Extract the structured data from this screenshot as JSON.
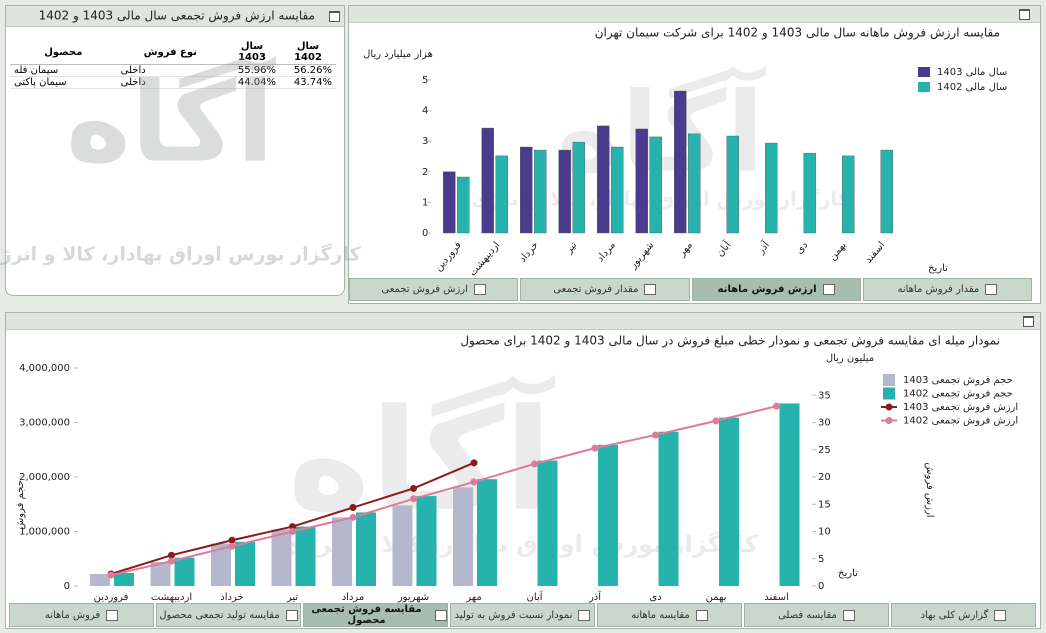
{
  "table_panel": {
    "title": "مقایسه ارزش فروش تجمعی سال مالی 1403 و 1402",
    "columns": [
      "محصول",
      "نوع فروش",
      "سال 1403",
      "سال 1402"
    ],
    "rows": [
      [
        "سیمان فله",
        "داخلی",
        "55.96%",
        "56.26%"
      ],
      [
        "سیمان پاکتی",
        "داخلی",
        "44.04%",
        "43.74%"
      ]
    ]
  },
  "watermark": {
    "logo": "آگاه",
    "text": "کارگزار بورس اوراق بهادار، کالا و انرژی"
  },
  "chart_data": [
    {
      "type": "bar",
      "title": "مقایسه ارزش فروش ماهانه سال مالی 1403 و 1402 برای شرکت سیمان تهران",
      "y_label": "هزار میلیارد ریال",
      "x_label": "تاریخ",
      "categories": [
        "فروردین",
        "اردیبهشت",
        "خرداد",
        "تیر",
        "مرداد",
        "شهریور",
        "مهر",
        "آبان",
        "آذر",
        "دی",
        "بهمن",
        "اسفند"
      ],
      "series": [
        {
          "name": "سال مالی 1403",
          "color": "#4a3b8c",
          "values": [
            2.0,
            3.43,
            2.81,
            2.71,
            3.5,
            3.4,
            4.64,
            null,
            null,
            null,
            null,
            null
          ]
        },
        {
          "name": "سال مالی 1402",
          "color": "#26b3ae",
          "values": [
            1.83,
            2.52,
            2.71,
            2.97,
            2.81,
            3.14,
            3.24,
            3.17,
            2.94,
            2.61,
            2.52,
            2.71
          ]
        }
      ],
      "ylim": [
        0,
        5
      ],
      "yticks": [
        0,
        1,
        2,
        3,
        4,
        5
      ],
      "grid": false,
      "legend": "upper-right"
    },
    {
      "type": "combo",
      "title": "نمودار میله ای مقایسه فروش تجمعی و نمودار خطی مبلغ فروش در سال مالی 1403 و 1402 برای محصول",
      "y_label": "حجم فروش",
      "y2_label": "ارزش فروش",
      "y2_unit": "میلیون ریال",
      "x_label": "تاریخ",
      "categories": [
        "فروردین",
        "اردیبهشت",
        "خرداد",
        "تیر",
        "مرداد",
        "شهریور",
        "مهر",
        "آبان",
        "آذر",
        "دی",
        "بهمن",
        "اسفند"
      ],
      "series": [
        {
          "name": "حجم فروش تجمعی 1403",
          "kind": "bar",
          "color": "#b5b8cd",
          "values": [
            220000,
            440000,
            780000,
            1040000,
            1260000,
            1480000,
            1810000,
            null,
            null,
            null,
            null,
            null
          ]
        },
        {
          "name": "حجم فروش تجمعی 1402",
          "kind": "bar",
          "color": "#26b3ae",
          "values": [
            240000,
            520000,
            810000,
            1090000,
            1350000,
            1650000,
            1960000,
            2300000,
            2590000,
            2830000,
            3090000,
            3350000
          ]
        },
        {
          "name": "ارزش فروش تجمعی 1403",
          "kind": "line",
          "axis": "y2",
          "color": "#8b1a1a",
          "values": [
            2.2,
            5.65,
            8.4,
            10.9,
            14.4,
            17.9,
            22.6,
            null,
            null,
            null,
            null,
            null
          ]
        },
        {
          "name": "ارزش فروش تجمعی 1402",
          "kind": "line",
          "axis": "y2",
          "color": "#e07a9a",
          "values": [
            2.0,
            4.56,
            7.3,
            10.0,
            12.6,
            16.0,
            19.1,
            22.4,
            25.3,
            27.7,
            30.3,
            33.0
          ]
        }
      ],
      "ylim": [
        0,
        4000000
      ],
      "yticks": [
        0,
        {
          "value": 1000000,
          "label": "1,000,000"
        },
        {
          "value": 2000000,
          "label": "2,000,000"
        },
        {
          "value": 3000000,
          "label": "3,000,000"
        },
        {
          "value": 4000000,
          "label": "4,000,000"
        }
      ],
      "y2lim": [
        0,
        40
      ],
      "y2ticks": [
        0,
        5,
        10,
        15,
        20,
        25,
        30,
        35
      ],
      "grid": false,
      "legend": "upper-right"
    }
  ],
  "tabs": {
    "monthly": [
      "مقدار فروش ماهانه",
      "ارزش فروش ماهانه",
      "مقدار فروش تجمعی",
      "ارزش فروش تجمعی"
    ],
    "monthly_active": 1,
    "cumulative": [
      "گزارش کلی بهاد",
      "مقایسه فصلی",
      "مقایسه ماهانه",
      "نمودار نسبت فروش به تولید",
      "مقایسه فروش تجمعی محصول",
      "مقایسه تولید تجمعی محصول",
      "فروش ماهانه"
    ],
    "cumulative_active": 4
  }
}
